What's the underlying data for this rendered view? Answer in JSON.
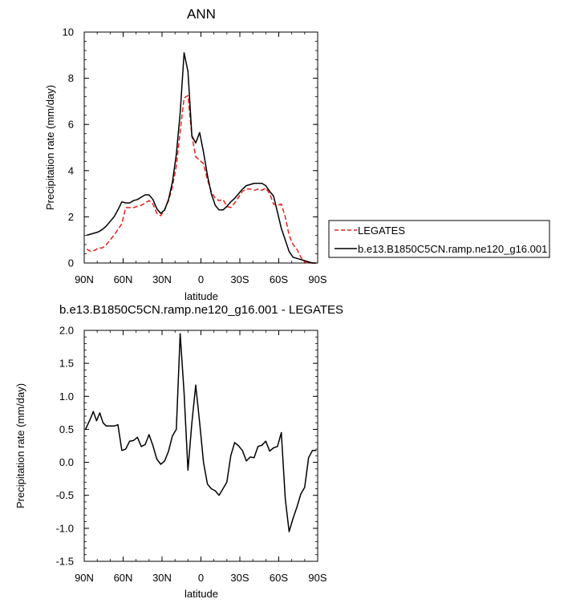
{
  "chart_data": [
    {
      "type": "line",
      "title": "ANN",
      "xlabel": "latitude",
      "ylabel": "Precipitation rate (mm/day)",
      "xlim": [
        90,
        -90
      ],
      "ylim": [
        0,
        10
      ],
      "xticks": [
        90,
        60,
        30,
        0,
        -30,
        -60,
        -90
      ],
      "xtick_labels": [
        "90N",
        "60N",
        "30N",
        "0",
        "30S",
        "60S",
        "90S"
      ],
      "yticks": [
        0,
        2,
        4,
        6,
        8,
        10
      ],
      "ytick_labels": [
        "0",
        "2",
        "4",
        "6",
        "8",
        "10"
      ],
      "legend_position": "right",
      "series": [
        {
          "name": "LEGATES",
          "color": "#e8211b",
          "dash": "dashed",
          "x": [
            88,
            85,
            82,
            79,
            76,
            73,
            70,
            67,
            64,
            61,
            58,
            55,
            52,
            49,
            46,
            43,
            40,
            37,
            34,
            31,
            28,
            25,
            22,
            19,
            16,
            13,
            10,
            7,
            4,
            1,
            -2,
            -5,
            -8,
            -11,
            -14,
            -17,
            -20,
            -23,
            -26,
            -29,
            -32,
            -35,
            -38,
            -41,
            -44,
            -47,
            -50,
            -53,
            -56,
            -59,
            -62,
            -65,
            -68,
            -71,
            -74,
            -77,
            -80,
            -83,
            -86,
            -89
          ],
          "y": [
            0.6,
            0.5,
            0.55,
            0.65,
            0.65,
            0.8,
            1.0,
            1.2,
            1.45,
            1.7,
            2.4,
            2.4,
            2.4,
            2.45,
            2.5,
            2.6,
            2.7,
            2.55,
            2.15,
            2.05,
            2.3,
            2.7,
            3.3,
            4.2,
            5.7,
            7.15,
            7.25,
            5.5,
            4.6,
            4.45,
            4.3,
            3.6,
            3.1,
            2.8,
            2.7,
            2.75,
            2.45,
            2.4,
            2.6,
            2.85,
            3.1,
            3.2,
            3.2,
            3.15,
            3.2,
            3.15,
            3.25,
            3.0,
            2.55,
            2.5,
            2.55,
            2.0,
            1.2,
            0.8,
            0.6,
            0.25,
            0.05,
            0.0,
            0.0,
            0.0
          ]
        },
        {
          "name": "b.e13.B1850C5CN.ramp.ne120_g16.001",
          "color": "#000000",
          "dash": "solid",
          "x": [
            88,
            85,
            82,
            79,
            76,
            73,
            70,
            67,
            64,
            61,
            58,
            55,
            52,
            49,
            46,
            43,
            40,
            37,
            34,
            31,
            28,
            25,
            22,
            19,
            16,
            13,
            10,
            7,
            4,
            1,
            -2,
            -5,
            -8,
            -11,
            -14,
            -17,
            -20,
            -23,
            -26,
            -29,
            -32,
            -35,
            -38,
            -41,
            -44,
            -47,
            -50,
            -53,
            -56,
            -59,
            -62,
            -65,
            -68,
            -71,
            -74,
            -77,
            -80,
            -83,
            -86,
            -89
          ],
          "y": [
            1.2,
            1.25,
            1.3,
            1.35,
            1.45,
            1.6,
            1.8,
            2.0,
            2.3,
            2.65,
            2.6,
            2.6,
            2.7,
            2.75,
            2.85,
            2.95,
            2.95,
            2.75,
            2.35,
            2.15,
            2.3,
            2.75,
            3.5,
            4.7,
            6.5,
            9.1,
            8.3,
            5.5,
            5.2,
            5.65,
            4.8,
            3.8,
            3.0,
            2.5,
            2.3,
            2.3,
            2.45,
            2.65,
            2.8,
            3.0,
            3.2,
            3.35,
            3.4,
            3.45,
            3.45,
            3.45,
            3.35,
            3.1,
            2.9,
            2.2,
            1.5,
            1.0,
            0.5,
            0.25,
            0.2,
            0.15,
            0.1,
            0.05,
            0.0,
            0.0
          ]
        }
      ]
    },
    {
      "type": "line",
      "title": "b.e13.B1850C5CN.ramp.ne120_g16.001 - LEGATES",
      "xlabel": "latitude",
      "ylabel": "Precipitation rate (mm/day)",
      "xlim": [
        90,
        -90
      ],
      "ylim": [
        -1.5,
        2.0
      ],
      "xticks": [
        90,
        60,
        30,
        0,
        -30,
        -60,
        -90
      ],
      "xtick_labels": [
        "90N",
        "60N",
        "30N",
        "0",
        "30S",
        "60S",
        "90S"
      ],
      "yticks": [
        -1.5,
        -1.0,
        -0.5,
        0.0,
        0.5,
        1.0,
        1.5,
        2.0
      ],
      "ytick_labels": [
        "-1.5",
        "-1.0",
        "-0.5",
        "0.0",
        "0.5",
        "1.0",
        "1.5",
        "2.0"
      ],
      "series": [
        {
          "color": "#000000",
          "dash": "solid",
          "x": [
            89,
            85.5,
            83,
            80.5,
            78,
            75.5,
            73,
            70,
            67,
            64,
            61,
            58,
            55,
            52,
            49,
            46,
            43,
            40,
            37,
            34,
            31,
            28,
            25,
            22,
            19,
            16,
            13,
            10,
            7,
            4,
            1,
            -2,
            -5,
            -8,
            -11,
            -14,
            -17,
            -20,
            -23,
            -26,
            -29,
            -32,
            -35,
            -38,
            -41,
            -44,
            -47,
            -50,
            -53,
            -56,
            -59,
            -62,
            -65,
            -68,
            -71,
            -74,
            -77,
            -80,
            -83,
            -86,
            -89
          ],
          "y": [
            0.5,
            0.65,
            0.77,
            0.63,
            0.75,
            0.6,
            0.55,
            0.55,
            0.55,
            0.57,
            0.18,
            0.2,
            0.32,
            0.33,
            0.38,
            0.24,
            0.27,
            0.42,
            0.25,
            0.05,
            -0.03,
            0.02,
            0.17,
            0.4,
            0.5,
            1.95,
            1.05,
            -0.12,
            0.6,
            1.17,
            0.6,
            0.0,
            -0.33,
            -0.4,
            -0.43,
            -0.5,
            -0.4,
            -0.3,
            0.1,
            0.3,
            0.25,
            0.18,
            0.02,
            0.08,
            0.07,
            0.24,
            0.26,
            0.32,
            0.17,
            0.22,
            0.24,
            0.45,
            -0.55,
            -1.05,
            -0.85,
            -0.68,
            -0.48,
            -0.38,
            0.07,
            0.18,
            0.18
          ]
        }
      ]
    }
  ]
}
